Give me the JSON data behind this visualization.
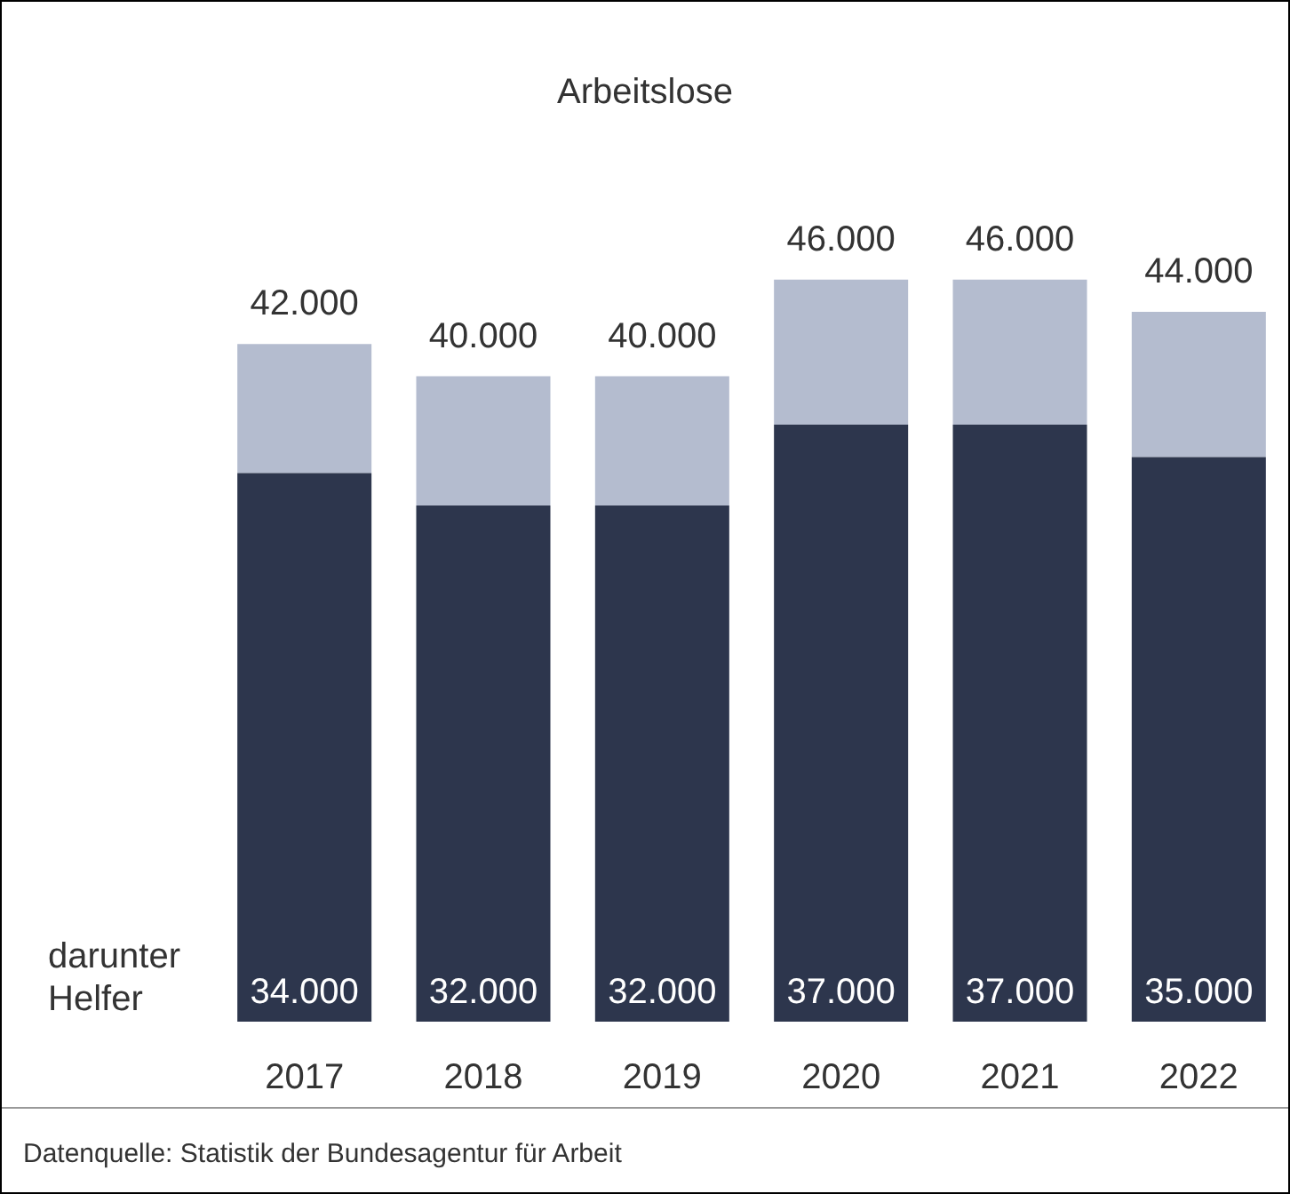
{
  "chart_data": {
    "type": "bar",
    "title": "Arbeitslose",
    "categories": [
      "2017",
      "2018",
      "2019",
      "2020",
      "2021",
      "2022"
    ],
    "stacked": true,
    "series": [
      {
        "name": "darunter Helfer",
        "color": "#2d364d",
        "values": [
          34000,
          32000,
          32000,
          37000,
          37000,
          35000
        ],
        "value_labels": [
          "34.000",
          "32.000",
          "32.000",
          "37.000",
          "37.000",
          "35.000"
        ]
      },
      {
        "color": "#b4bccf",
        "values": [
          8000,
          8000,
          8000,
          9000,
          9000,
          9000
        ]
      }
    ],
    "totals": [
      "42.000",
      "40.000",
      "40.000",
      "46.000",
      "46.000",
      "44.000"
    ],
    "grid": false,
    "legend": false,
    "tick_labels": "x",
    "annotations": [
      "Datenquelle: Statistik der Bundesagentur für Arbeit"
    ]
  }
}
